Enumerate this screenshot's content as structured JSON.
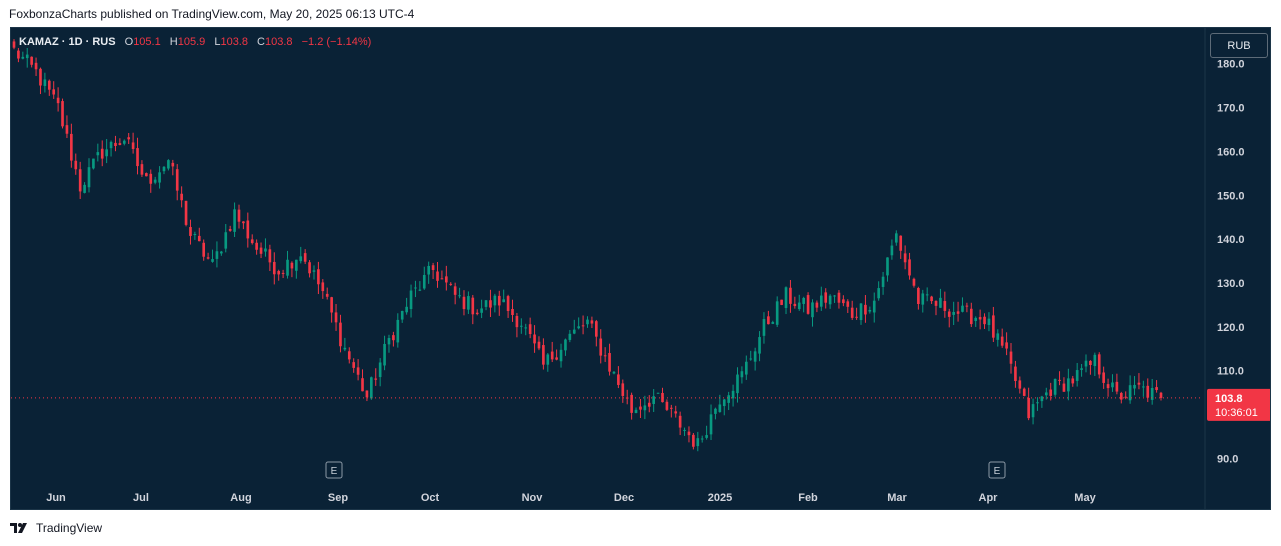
{
  "header": {
    "published_line": "FoxbonzaCharts published on TradingView.com, May 20, 2025 06:13 UTC-4"
  },
  "legend": {
    "symbol": "KAMAZ · 1D · RUS",
    "open_label": "O",
    "open_value": "105.1",
    "high_label": "H",
    "high_value": "105.9",
    "low_label": "L",
    "low_value": "103.8",
    "close_label": "C",
    "close_value": "103.8",
    "change": "−1.2 (−1.14%)"
  },
  "currency_button": "RUB",
  "last_price": {
    "value": "103.8",
    "countdown": "10:36:01"
  },
  "earnings_marker": "E",
  "footer": {
    "brand": "TradingView"
  },
  "colors": {
    "background": "#0a2236",
    "up": "#089981",
    "down": "#f23645",
    "axis_text": "#d1d4dc"
  },
  "chart_data": {
    "type": "candlestick",
    "ylim": [
      86,
      187
    ],
    "y_ticks": [
      180,
      170,
      160,
      150,
      140,
      130,
      120,
      110,
      90
    ],
    "x_labels": [
      "Jun",
      "Jul",
      "Aug",
      "Sep",
      "Oct",
      "Nov",
      "Dec",
      "2025",
      "Feb",
      "Mar",
      "Apr",
      "May"
    ],
    "last_close": 103.8,
    "earnings_events": [
      "Sep",
      "Apr"
    ],
    "close_path": [
      [
        "May 20, 2024",
        183
      ],
      [
        "May 27",
        178
      ],
      [
        "Jun 3",
        170
      ],
      [
        "Jun 10",
        152
      ],
      [
        "Jun 17",
        160
      ],
      [
        "Jun 24",
        163
      ],
      [
        "Jul 1",
        153
      ],
      [
        "Jul 8",
        158
      ],
      [
        "Jul 15",
        141
      ],
      [
        "Jul 22",
        134
      ],
      [
        "Jul 29",
        146
      ],
      [
        "Aug 5",
        138
      ],
      [
        "Aug 12",
        133
      ],
      [
        "Aug 19",
        137
      ],
      [
        "Aug 26",
        128
      ],
      [
        "Sep 2",
        115
      ],
      [
        "Sep 9",
        104
      ],
      [
        "Sep 16",
        117
      ],
      [
        "Sep 23",
        127
      ],
      [
        "Sep 30",
        133
      ],
      [
        "Oct 7",
        127
      ],
      [
        "Oct 14",
        124
      ],
      [
        "Oct 21",
        126
      ],
      [
        "Oct 28",
        121
      ],
      [
        "Nov 4",
        111
      ],
      [
        "Nov 11",
        117
      ],
      [
        "Nov 18",
        121
      ],
      [
        "Nov 25",
        111
      ],
      [
        "Dec 2",
        101
      ],
      [
        "Dec 9",
        104
      ],
      [
        "Dec 16",
        99
      ],
      [
        "Dec 23",
        93
      ],
      [
        "Dec 30",
        104
      ],
      [
        "Jan 6, 2025",
        109
      ],
      [
        "Jan 13",
        120
      ],
      [
        "Jan 20",
        127
      ],
      [
        "Jan 27",
        124
      ],
      [
        "Feb 3",
        127
      ],
      [
        "Feb 10",
        123
      ],
      [
        "Feb 17",
        126
      ],
      [
        "Feb 24",
        141
      ],
      [
        "Mar 3",
        126
      ],
      [
        "Mar 10",
        125
      ],
      [
        "Mar 17",
        123
      ],
      [
        "Mar 24",
        122
      ],
      [
        "Mar 31",
        113
      ],
      [
        "Apr 7",
        100
      ],
      [
        "Apr 14",
        106
      ],
      [
        "Apr 21",
        108
      ],
      [
        "Apr 28",
        112
      ],
      [
        "May 5",
        104
      ],
      [
        "May 12",
        106
      ],
      [
        "May 20",
        103.8
      ]
    ]
  }
}
